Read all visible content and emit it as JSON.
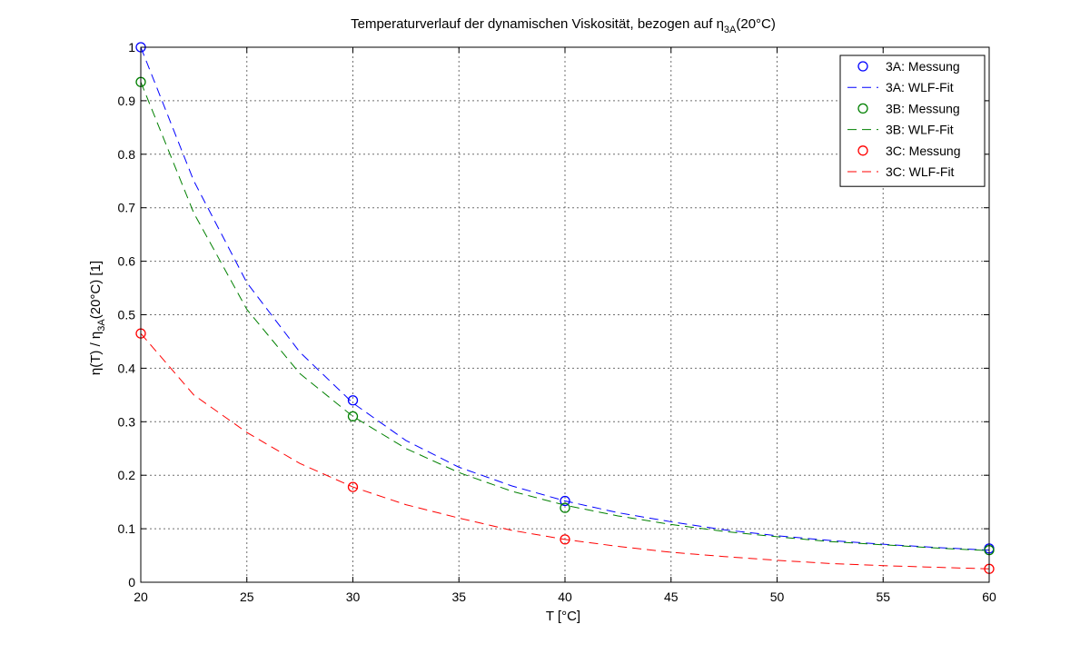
{
  "chart_data": {
    "type": "line",
    "title": {
      "prefix": "Temperaturverlauf der dynamischen Viskosität, bezogen auf ",
      "symbol": "η",
      "subscript": "3A",
      "suffix": "(20°C)"
    },
    "xlabel": "T [°C]",
    "ylabel": {
      "prefix": "η(T) / η",
      "subscript": "3A",
      "suffix": "(20°C)   [1]"
    },
    "xlim": [
      20,
      60
    ],
    "ylim": [
      0,
      1
    ],
    "xticks": [
      20,
      25,
      30,
      35,
      40,
      45,
      50,
      55,
      60
    ],
    "yticks": [
      0,
      0.1,
      0.2,
      0.3,
      0.4,
      0.5,
      0.6,
      0.7,
      0.8,
      0.9,
      1
    ],
    "xtick_labels": [
      "20",
      "25",
      "30",
      "35",
      "40",
      "45",
      "50",
      "55",
      "60"
    ],
    "ytick_labels": [
      "0",
      "0.1",
      "0.2",
      "0.3",
      "0.4",
      "0.5",
      "0.6",
      "0.7",
      "0.8",
      "0.9",
      "1"
    ],
    "grid": true,
    "legend_position": "top-right",
    "series": [
      {
        "name": "3A: Messung",
        "kind": "markers",
        "marker": "circle",
        "color": "#0000ff",
        "x": [
          20,
          30,
          40,
          60
        ],
        "y": [
          1.0,
          0.34,
          0.152,
          0.063
        ]
      },
      {
        "name": "3A: WLF-Fit",
        "kind": "line",
        "dash": "dashed",
        "color": "#0000ff",
        "x": [
          20,
          22.5,
          25,
          27.5,
          30,
          32.5,
          35,
          37.5,
          40,
          42.5,
          45,
          47.5,
          50,
          52.5,
          55,
          57.5,
          60
        ],
        "y": [
          1.0,
          0.75,
          0.56,
          0.43,
          0.335,
          0.265,
          0.215,
          0.18,
          0.152,
          0.13,
          0.113,
          0.098,
          0.087,
          0.078,
          0.071,
          0.065,
          0.06
        ]
      },
      {
        "name": "3B: Messung",
        "kind": "markers",
        "marker": "circle",
        "color": "#008000",
        "x": [
          20,
          30,
          40,
          60
        ],
        "y": [
          0.935,
          0.31,
          0.139,
          0.06
        ]
      },
      {
        "name": "3B: WLF-Fit",
        "kind": "line",
        "dash": "dashed",
        "color": "#008000",
        "x": [
          20,
          22.5,
          25,
          27.5,
          30,
          32.5,
          35,
          37.5,
          40,
          42.5,
          45,
          47.5,
          50,
          52.5,
          55,
          57.5,
          60
        ],
        "y": [
          0.935,
          0.69,
          0.51,
          0.39,
          0.31,
          0.25,
          0.205,
          0.17,
          0.144,
          0.124,
          0.108,
          0.095,
          0.085,
          0.076,
          0.07,
          0.064,
          0.059
        ]
      },
      {
        "name": "3C: Messung",
        "kind": "markers",
        "marker": "circle",
        "color": "#ff0000",
        "x": [
          20,
          30,
          40,
          60
        ],
        "y": [
          0.465,
          0.178,
          0.08,
          0.025
        ]
      },
      {
        "name": "3C: WLF-Fit",
        "kind": "line",
        "dash": "dashed",
        "color": "#ff0000",
        "x": [
          20,
          22.5,
          25,
          27.5,
          30,
          32.5,
          35,
          37.5,
          40,
          42.5,
          45,
          47.5,
          50,
          52.5,
          55,
          57.5,
          60
        ],
        "y": [
          0.465,
          0.35,
          0.28,
          0.222,
          0.178,
          0.145,
          0.12,
          0.097,
          0.08,
          0.067,
          0.056,
          0.048,
          0.041,
          0.035,
          0.031,
          0.028,
          0.025
        ]
      }
    ]
  }
}
